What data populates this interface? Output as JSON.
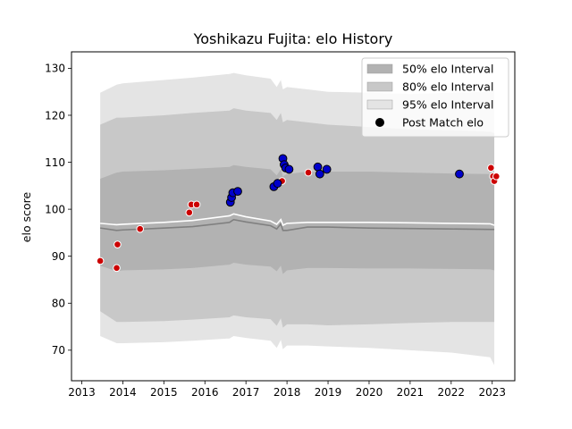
{
  "chart_data": {
    "type": "scatter",
    "title": "Yoshikazu Fujita: elo History",
    "xlabel": "",
    "ylabel": "elo score",
    "xlim": [
      2012.75,
      2023.55
    ],
    "ylim": [
      63.5,
      133.5
    ],
    "xticks": [
      2013,
      2014,
      2015,
      2016,
      2017,
      2018,
      2019,
      2020,
      2021,
      2022,
      2023
    ],
    "yticks": [
      70,
      80,
      90,
      100,
      110,
      120,
      130
    ],
    "grid": false,
    "legend_position": "top-right",
    "legend": [
      {
        "label": "50% elo Interval",
        "kind": "band",
        "color": "#b2b2b2"
      },
      {
        "label": "80% elo Interval",
        "kind": "band",
        "color": "#c8c8c8"
      },
      {
        "label": "95% elo Interval",
        "kind": "band",
        "color": "#e4e4e4"
      },
      {
        "label": "Post Match elo",
        "kind": "marker",
        "color": "#000000"
      }
    ],
    "bands": {
      "x": [
        2013.45,
        2013.85,
        2014.0,
        2015.0,
        2015.7,
        2016.6,
        2016.7,
        2017.0,
        2017.6,
        2017.75,
        2017.85,
        2017.9,
        2018.0,
        2018.5,
        2019.0,
        2020.0,
        2021.0,
        2022.0,
        2022.95,
        2023.05
      ],
      "p50_low": [
        88.0,
        86.8,
        87.0,
        87.2,
        87.5,
        88.2,
        88.6,
        88.2,
        87.8,
        86.8,
        88.0,
        86.2,
        87.0,
        87.5,
        87.5,
        87.4,
        87.4,
        87.3,
        87.2,
        87.0
      ],
      "p50_high": [
        106.5,
        107.8,
        108.0,
        108.3,
        108.6,
        109.0,
        109.4,
        109.0,
        108.5,
        107.2,
        108.5,
        107.0,
        107.5,
        108.0,
        108.0,
        108.0,
        107.8,
        107.6,
        107.5,
        107.3
      ],
      "p80_low": [
        78.3,
        76.0,
        76.0,
        76.2,
        76.5,
        77.0,
        77.4,
        77.0,
        76.6,
        75.2,
        76.8,
        74.8,
        75.5,
        75.5,
        75.3,
        75.5,
        75.8,
        76.0,
        76.0,
        76.0
      ],
      "p80_high": [
        118.0,
        119.5,
        119.5,
        120.0,
        120.5,
        121.0,
        121.5,
        121.0,
        120.5,
        119.0,
        120.5,
        118.5,
        119.0,
        118.5,
        118.0,
        117.5,
        117.0,
        116.8,
        116.5,
        116.2
      ],
      "p95_low": [
        73.0,
        71.5,
        71.5,
        71.7,
        72.0,
        72.5,
        73.0,
        72.6,
        72.0,
        70.5,
        72.2,
        70.2,
        71.0,
        71.0,
        70.8,
        70.5,
        70.0,
        69.5,
        68.5,
        66.8
      ],
      "p95_high": [
        124.8,
        126.5,
        126.8,
        127.5,
        128.0,
        128.8,
        129.0,
        128.5,
        127.8,
        126.0,
        127.5,
        125.5,
        126.0,
        125.5,
        125.0,
        124.8,
        124.5,
        124.8,
        125.0,
        125.2
      ]
    },
    "mean_line": {
      "color": "#808080",
      "x": [
        2013.45,
        2013.85,
        2014.0,
        2015.0,
        2015.7,
        2016.6,
        2016.7,
        2017.0,
        2017.6,
        2017.75,
        2017.85,
        2017.9,
        2018.0,
        2018.5,
        2019.0,
        2020.0,
        2021.0,
        2022.0,
        2022.95,
        2023.05
      ],
      "y": [
        96.0,
        95.5,
        95.6,
        96.0,
        96.3,
        97.2,
        97.8,
        97.3,
        96.5,
        95.8,
        96.9,
        95.5,
        95.5,
        96.2,
        96.2,
        96.0,
        95.9,
        95.8,
        95.7,
        95.7
      ]
    },
    "median_line": {
      "color": "#ffffff",
      "x": [
        2013.45,
        2013.85,
        2014.0,
        2015.0,
        2015.7,
        2016.6,
        2016.7,
        2017.0,
        2017.6,
        2017.75,
        2017.85,
        2017.9,
        2018.0,
        2018.5,
        2019.0,
        2020.0,
        2021.0,
        2022.0,
        2022.95,
        2023.05
      ],
      "y": [
        97.0,
        96.7,
        96.8,
        97.2,
        97.6,
        98.6,
        99.0,
        98.4,
        97.5,
        96.8,
        97.8,
        96.6,
        97.0,
        97.2,
        97.2,
        97.2,
        97.1,
        97.0,
        96.9,
        96.6
      ]
    },
    "series": [
      {
        "color": "#cc0000",
        "points": [
          {
            "x": 2013.45,
            "y": 89.0
          },
          {
            "x": 2013.85,
            "y": 87.5
          },
          {
            "x": 2013.87,
            "y": 92.5
          },
          {
            "x": 2014.42,
            "y": 95.8
          },
          {
            "x": 2015.62,
            "y": 99.3
          },
          {
            "x": 2015.67,
            "y": 101.0
          },
          {
            "x": 2015.8,
            "y": 101.0
          },
          {
            "x": 2017.88,
            "y": 106.0
          },
          {
            "x": 2018.52,
            "y": 107.8
          },
          {
            "x": 2022.97,
            "y": 108.8
          },
          {
            "x": 2023.02,
            "y": 107.0
          },
          {
            "x": 2023.05,
            "y": 106.0
          },
          {
            "x": 2023.1,
            "y": 107.0
          }
        ]
      },
      {
        "color": "#0000cc",
        "points": [
          {
            "x": 2016.62,
            "y": 101.5
          },
          {
            "x": 2016.65,
            "y": 102.5
          },
          {
            "x": 2016.68,
            "y": 103.5
          },
          {
            "x": 2016.8,
            "y": 103.8
          },
          {
            "x": 2017.68,
            "y": 104.8
          },
          {
            "x": 2017.77,
            "y": 105.5
          },
          {
            "x": 2017.9,
            "y": 110.8
          },
          {
            "x": 2017.93,
            "y": 109.5
          },
          {
            "x": 2017.97,
            "y": 108.8
          },
          {
            "x": 2018.05,
            "y": 108.5
          },
          {
            "x": 2018.75,
            "y": 109.0
          },
          {
            "x": 2018.8,
            "y": 107.5
          },
          {
            "x": 2018.97,
            "y": 108.5
          },
          {
            "x": 2022.2,
            "y": 107.5
          }
        ]
      }
    ]
  }
}
